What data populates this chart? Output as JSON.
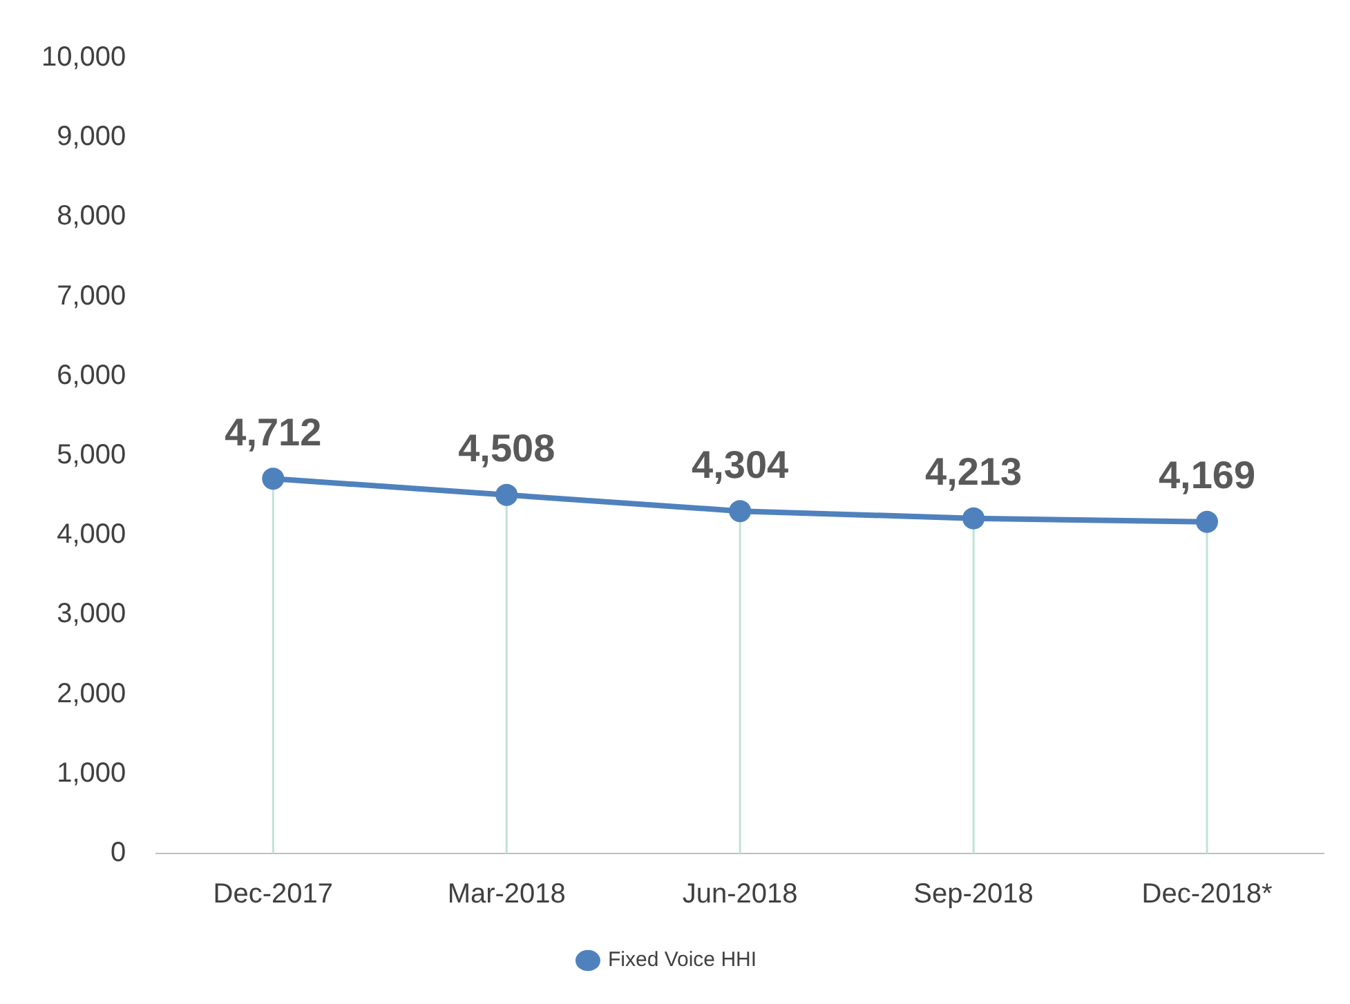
{
  "chart_data": {
    "type": "line",
    "categories": [
      "Dec-2017",
      "Mar-2018",
      "Jun-2018",
      "Sep-2018",
      "Dec-2018*"
    ],
    "series": [
      {
        "name": "Fixed Voice HHI",
        "color": "#4f81bd",
        "values": [
          4712,
          4508,
          4304,
          4213,
          4169
        ],
        "value_labels": [
          "4,712",
          "4,508",
          "4,304",
          "4,213",
          "4,169"
        ]
      }
    ],
    "ylim": [
      0,
      10000
    ],
    "yticks": [
      {
        "value": 0,
        "label": "0"
      },
      {
        "value": 1000,
        "label": "1,000"
      },
      {
        "value": 2000,
        "label": "2,000"
      },
      {
        "value": 3000,
        "label": "3,000"
      },
      {
        "value": 4000,
        "label": "4,000"
      },
      {
        "value": 5000,
        "label": "5,000"
      },
      {
        "value": 6000,
        "label": "6,000"
      },
      {
        "value": 7000,
        "label": "7,000"
      },
      {
        "value": 8000,
        "label": "8,000"
      },
      {
        "value": 9000,
        "label": "9,000"
      },
      {
        "value": 10000,
        "label": "10,000"
      }
    ],
    "grid": false,
    "legend": "bottom",
    "marker": "circle",
    "line_style": "solid"
  }
}
